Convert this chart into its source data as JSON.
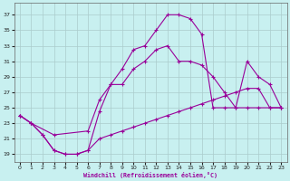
{
  "xlabel": "Windchill (Refroidissement éolien,°C)",
  "background_color": "#c8f0f0",
  "line_color": "#990099",
  "grid_color": "#aacccc",
  "xlim": [
    -0.5,
    23.5
  ],
  "ylim": [
    18.0,
    38.5
  ],
  "xticks": [
    0,
    1,
    2,
    3,
    4,
    5,
    6,
    7,
    8,
    9,
    10,
    11,
    12,
    13,
    14,
    15,
    16,
    17,
    18,
    19,
    20,
    21,
    22,
    23
  ],
  "yticks": [
    19,
    21,
    23,
    25,
    27,
    29,
    31,
    33,
    35,
    37
  ],
  "line1_x": [
    0,
    1,
    2,
    3,
    4,
    5,
    6,
    7,
    8,
    9,
    10,
    11,
    12,
    13,
    14,
    15,
    16,
    17,
    18,
    19,
    20,
    21,
    22,
    23
  ],
  "line1_y": [
    24.0,
    23.0,
    21.5,
    19.5,
    19.0,
    19.0,
    19.5,
    24.5,
    28.0,
    30.0,
    32.5,
    33.0,
    35.0,
    37.0,
    37.0,
    36.5,
    34.5,
    25.0,
    25.0,
    25.0,
    25.0,
    25.0,
    25.0,
    25.0
  ],
  "line2_x": [
    0,
    1,
    3,
    6,
    7,
    8,
    9,
    10,
    11,
    12,
    13,
    14,
    15,
    16,
    17,
    18,
    19,
    20,
    21,
    22,
    23
  ],
  "line2_y": [
    24.0,
    23.0,
    21.5,
    22.0,
    26.0,
    28.0,
    28.0,
    30.0,
    31.0,
    32.5,
    33.0,
    31.0,
    31.0,
    30.5,
    29.0,
    27.0,
    25.0,
    31.0,
    29.0,
    28.0,
    25.0
  ],
  "line3_x": [
    0,
    1,
    2,
    3,
    4,
    5,
    6,
    7,
    8,
    9,
    10,
    11,
    12,
    13,
    14,
    15,
    16,
    17,
    18,
    19,
    20,
    21,
    22,
    23
  ],
  "line3_y": [
    24.0,
    23.0,
    21.5,
    19.5,
    19.0,
    19.0,
    19.5,
    21.0,
    21.5,
    22.0,
    22.5,
    23.0,
    23.5,
    24.0,
    24.5,
    25.0,
    25.5,
    26.0,
    26.5,
    27.0,
    27.5,
    27.5,
    25.0,
    25.0
  ]
}
